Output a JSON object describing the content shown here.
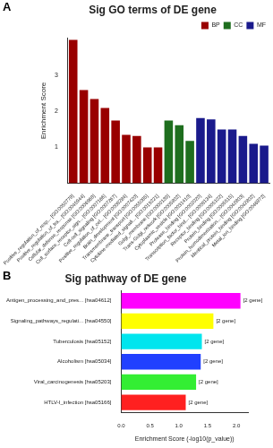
{
  "chart_data": [
    {
      "panel": "A",
      "type": "bar",
      "title": "Sig GO terms of DE gene",
      "y_label": "Enrichment Score",
      "categories": [
        "Positive_regulation_of_resp... [GO:0050778]",
        "Positive_regulation_of_tra... [GO:0045944]",
        "Cellular_defense_response [GO:0006968]",
        "Cell_surface_receptor_sign... [GO:0007166]",
        "Cell-cell_signaling [GO:0007267]",
        "Positive_regulation_of_cel... [GO:0008284]",
        "Brain_development [GO:0007420]",
        "Transmembrane_transport [GO:0055085]",
        "Cytokine-mediated_signali... [GO:0019221]",
        "Golgi_membrane [GO:0000139]",
        "Trans-Golgi_network [GO:0005802]",
        "Cytoplasmic_vesicle [GO:0031410]",
        "Protease_binding [GO:0002020]",
        "Transcription_factor_bind... [GO:0008134]",
        "Receptor_binding [GO:0005102]",
        "Protein_binding [GO:0005515]",
        "Protein_homodimerization... [GO:0042803]",
        "Identical_protein_binding [GO:0042802]",
        "Metal_ion_binding [GO:0046872]"
      ],
      "series": [
        {
          "name": "BP",
          "color": "#990000",
          "values": [
            4.0,
            2.6,
            2.35,
            2.1,
            1.75,
            1.35,
            1.32,
            1.0,
            1.0,
            null,
            null,
            null,
            null,
            null,
            null,
            null,
            null,
            null,
            null
          ]
        },
        {
          "name": "CC",
          "color": "#1e6e1e",
          "values": [
            null,
            null,
            null,
            null,
            null,
            null,
            null,
            null,
            null,
            1.75,
            1.62,
            1.18,
            null,
            null,
            null,
            null,
            null,
            null,
            null
          ]
        },
        {
          "name": "MF",
          "color": "#1a1a8c",
          "values": [
            null,
            null,
            null,
            null,
            null,
            null,
            null,
            null,
            null,
            null,
            null,
            null,
            1.82,
            1.78,
            1.5,
            1.5,
            1.32,
            1.1,
            1.05
          ]
        }
      ],
      "ylim": [
        0,
        4.05
      ],
      "yticks": [
        1,
        2,
        3
      ],
      "grid": false,
      "legend": "top-right"
    },
    {
      "panel": "B",
      "type": "bar",
      "orientation": "horizontal",
      "title": "Sig pathway of DE gene",
      "x_label": "Enrichment Score (-log10(p_value))",
      "categories": [
        "Antigen_processing_and_pres... [hsa04612]",
        "Signaling_pathways_regulati... [hsa04550]",
        "Tuberculosis [hsa05152]",
        "Alcoholism [hsa05034]",
        "Viral_carcinogenesis [hsa05203]",
        "HTLV-I_infection [hsa05166]"
      ],
      "values": [
        2.07,
        1.6,
        1.4,
        1.38,
        1.3,
        1.12
      ],
      "bar_annotations": [
        "[2 gene]",
        "[2 gene]",
        "[2 gene]",
        "[2 gene]",
        "[2 gene]",
        "[2 gene]"
      ],
      "colors": [
        "#ff00ff",
        "#ffff00",
        "#00e5ee",
        "#2040ff",
        "#33ee33",
        "#ff2020"
      ],
      "xlim": [
        0,
        2.2
      ],
      "xticks": [
        {
          "value": 0,
          "label": "0.0"
        },
        {
          "value": 0.5,
          "label": "0.5"
        },
        {
          "value": 1,
          "label": "1.0"
        },
        {
          "value": 1.5,
          "label": "1.5"
        },
        {
          "value": 2,
          "label": "2.0"
        }
      ],
      "grid": false
    }
  ]
}
